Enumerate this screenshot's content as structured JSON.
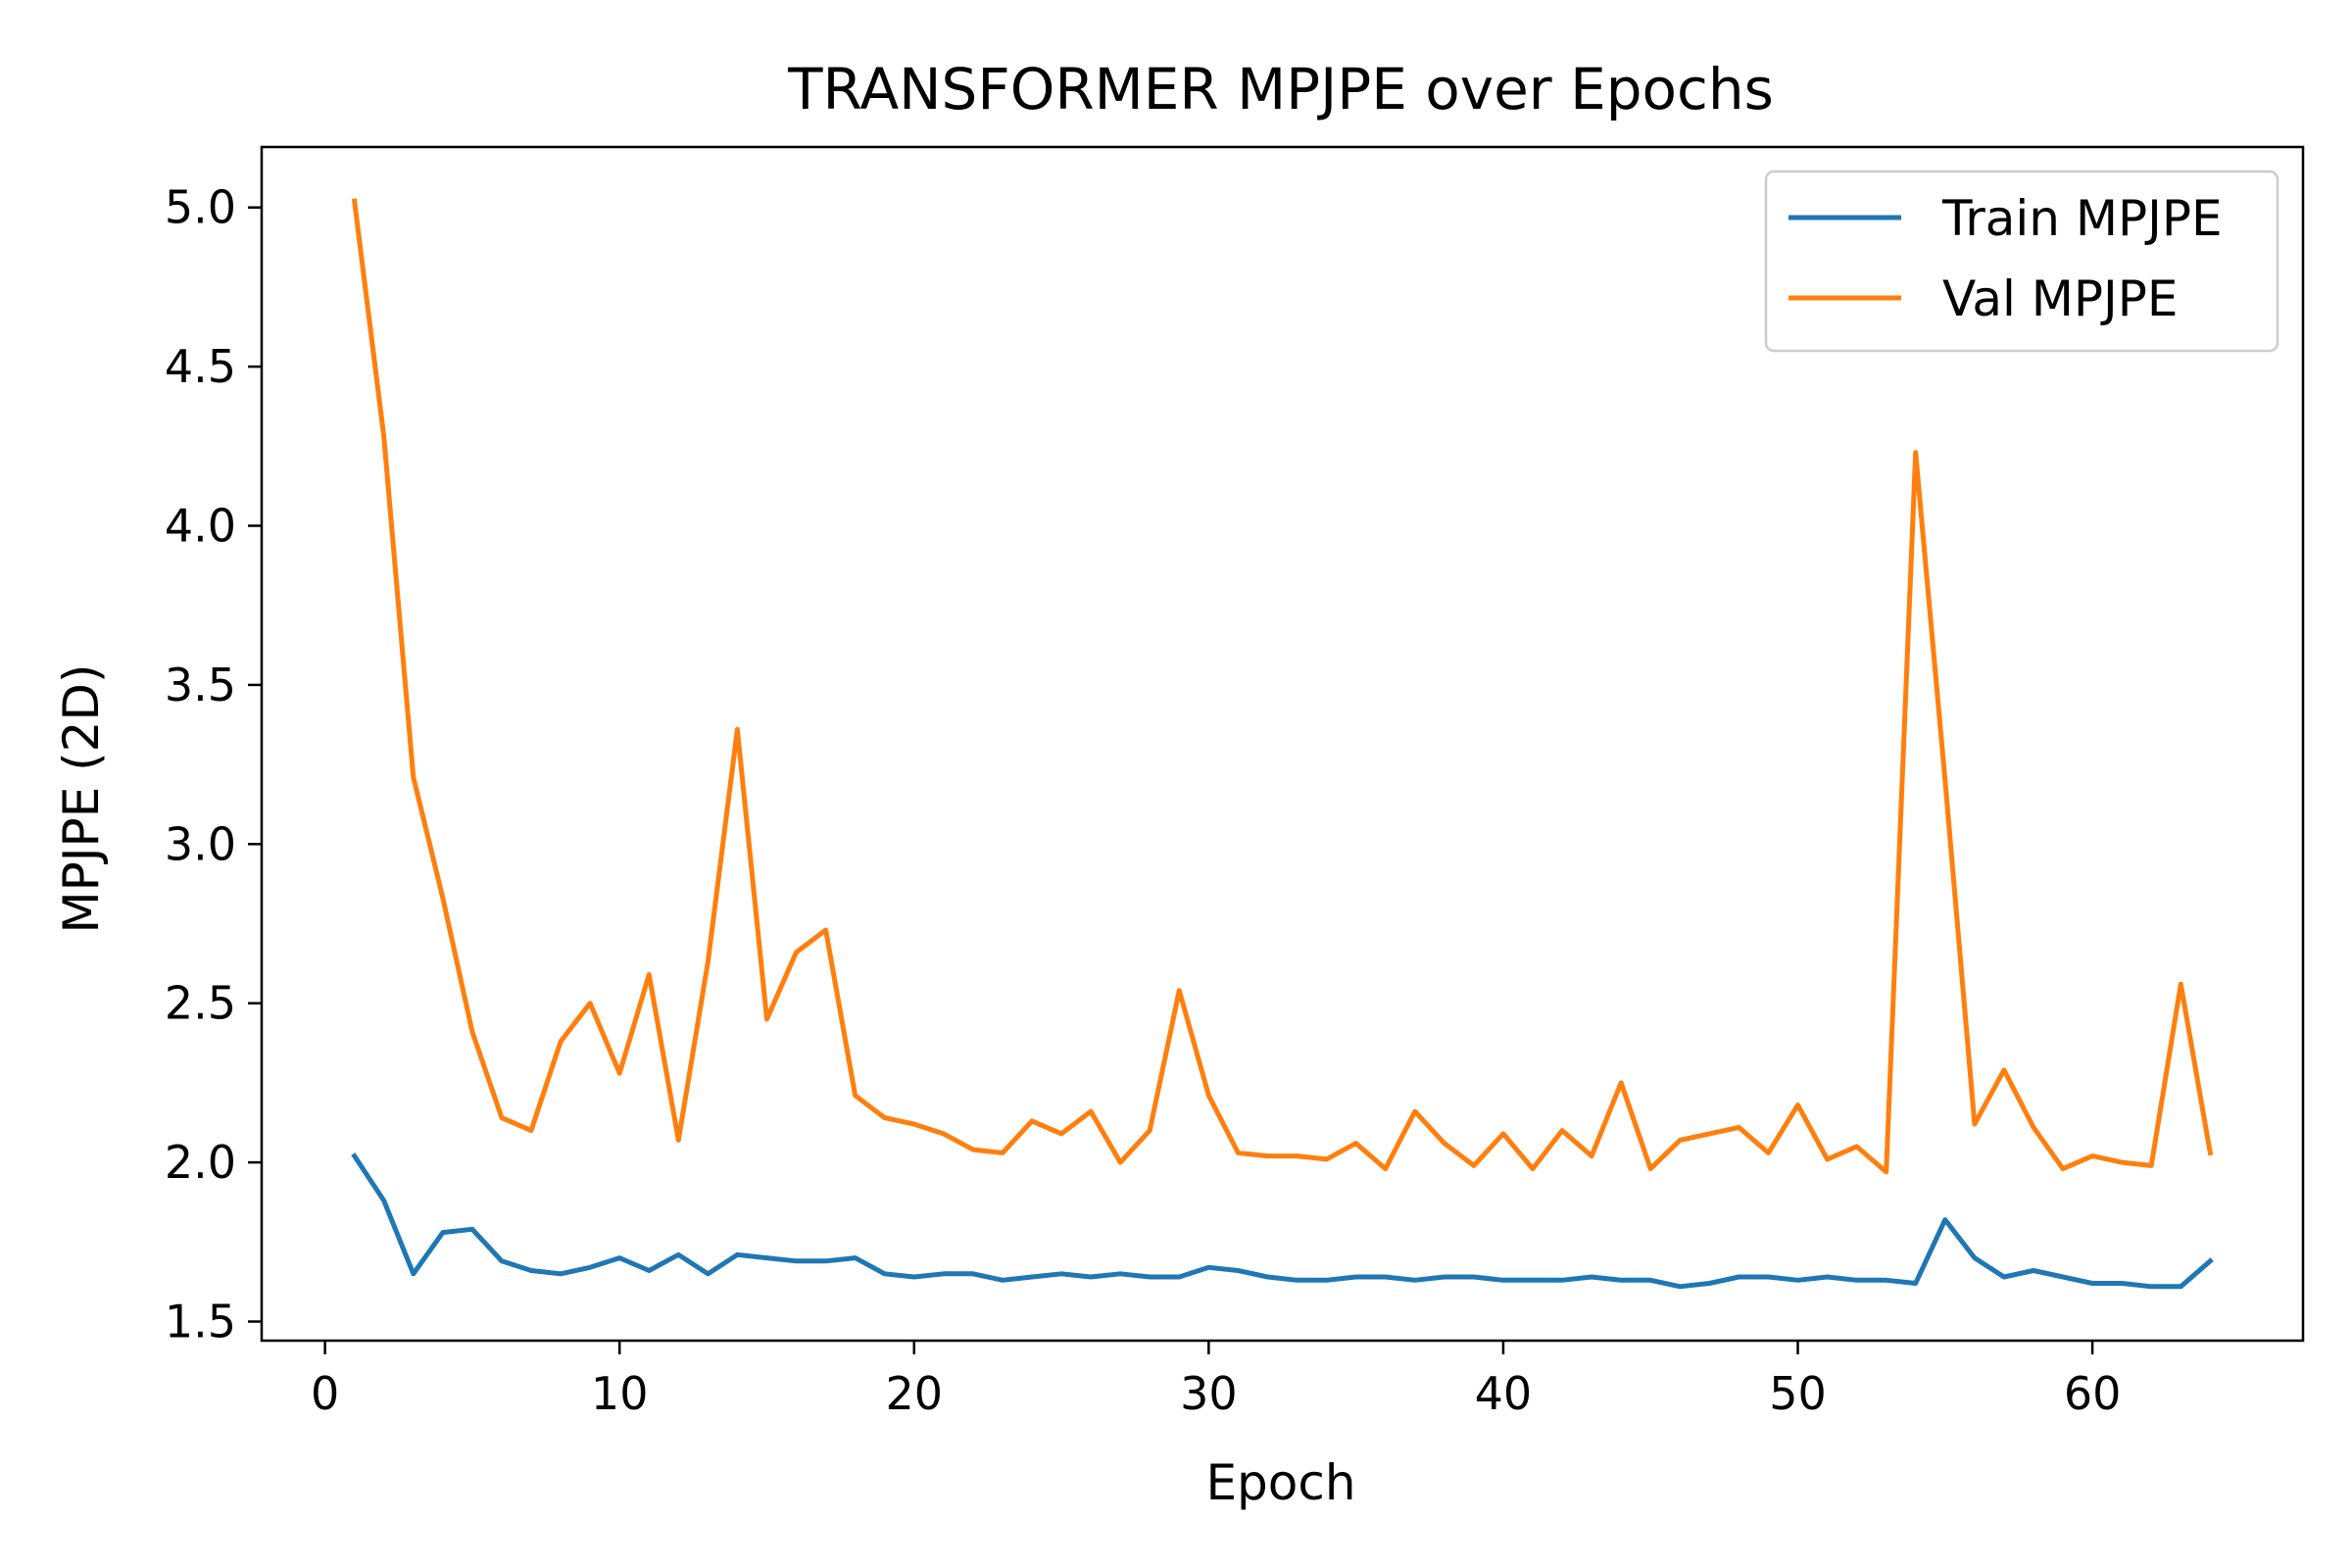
{
  "chart_data": {
    "type": "line",
    "title": "TRANSFORMER MPJPE over Epochs",
    "xlabel": "Epoch",
    "ylabel": "MPJPE (2D)",
    "xlim": [
      -2.15,
      67.15
    ],
    "ylim": [
      1.44,
      5.19
    ],
    "xticks": [
      0,
      10,
      20,
      30,
      40,
      50,
      60
    ],
    "yticks": [
      1.5,
      2.0,
      2.5,
      3.0,
      3.5,
      4.0,
      4.5,
      5.0
    ],
    "ytick_labels": [
      "1.5",
      "2.0",
      "2.5",
      "3.0",
      "3.5",
      "4.0",
      "4.5",
      "5.0"
    ],
    "grid": false,
    "legend_position": "top-right",
    "x": [
      1,
      2,
      3,
      4,
      5,
      6,
      7,
      8,
      9,
      10,
      11,
      12,
      13,
      14,
      15,
      16,
      17,
      18,
      19,
      20,
      21,
      22,
      23,
      24,
      25,
      26,
      27,
      28,
      29,
      30,
      31,
      32,
      33,
      34,
      35,
      36,
      37,
      38,
      39,
      40,
      41,
      42,
      43,
      44,
      45,
      46,
      47,
      48,
      49,
      50,
      51,
      52,
      53,
      54,
      55,
      56,
      57,
      58,
      59,
      60,
      61,
      62,
      63,
      64
    ],
    "series": [
      {
        "name": "Train MPJPE",
        "color": "#1f77b4",
        "values": [
          2.02,
          1.88,
          1.65,
          1.78,
          1.79,
          1.69,
          1.66,
          1.65,
          1.67,
          1.7,
          1.66,
          1.71,
          1.65,
          1.71,
          1.7,
          1.69,
          1.69,
          1.7,
          1.65,
          1.64,
          1.65,
          1.65,
          1.63,
          1.64,
          1.65,
          1.64,
          1.65,
          1.64,
          1.64,
          1.67,
          1.66,
          1.64,
          1.63,
          1.63,
          1.64,
          1.64,
          1.63,
          1.64,
          1.64,
          1.63,
          1.63,
          1.63,
          1.64,
          1.63,
          1.63,
          1.61,
          1.62,
          1.64,
          1.64,
          1.63,
          1.64,
          1.63,
          1.63,
          1.62,
          1.82,
          1.7,
          1.64,
          1.66,
          1.64,
          1.62,
          1.62,
          1.61,
          1.61,
          1.69
        ]
      },
      {
        "name": "Val MPJPE",
        "color": "#ff7f0e",
        "values": [
          5.02,
          4.28,
          3.21,
          2.83,
          2.41,
          2.14,
          2.1,
          2.38,
          2.5,
          2.28,
          2.59,
          2.07,
          2.63,
          3.36,
          2.45,
          2.66,
          2.73,
          2.21,
          2.14,
          2.12,
          2.09,
          2.04,
          2.03,
          2.13,
          2.09,
          2.16,
          2.0,
          2.1,
          2.54,
          2.21,
          2.03,
          2.02,
          2.02,
          2.01,
          2.06,
          1.98,
          2.16,
          2.06,
          1.99,
          2.09,
          1.98,
          2.1,
          2.02,
          2.25,
          1.98,
          2.07,
          2.09,
          2.11,
          2.03,
          2.18,
          2.01,
          2.05,
          1.97,
          4.23,
          3.2,
          2.12,
          2.29,
          2.11,
          1.98,
          2.02,
          2.0,
          1.99,
          2.56,
          2.03
        ]
      }
    ]
  }
}
